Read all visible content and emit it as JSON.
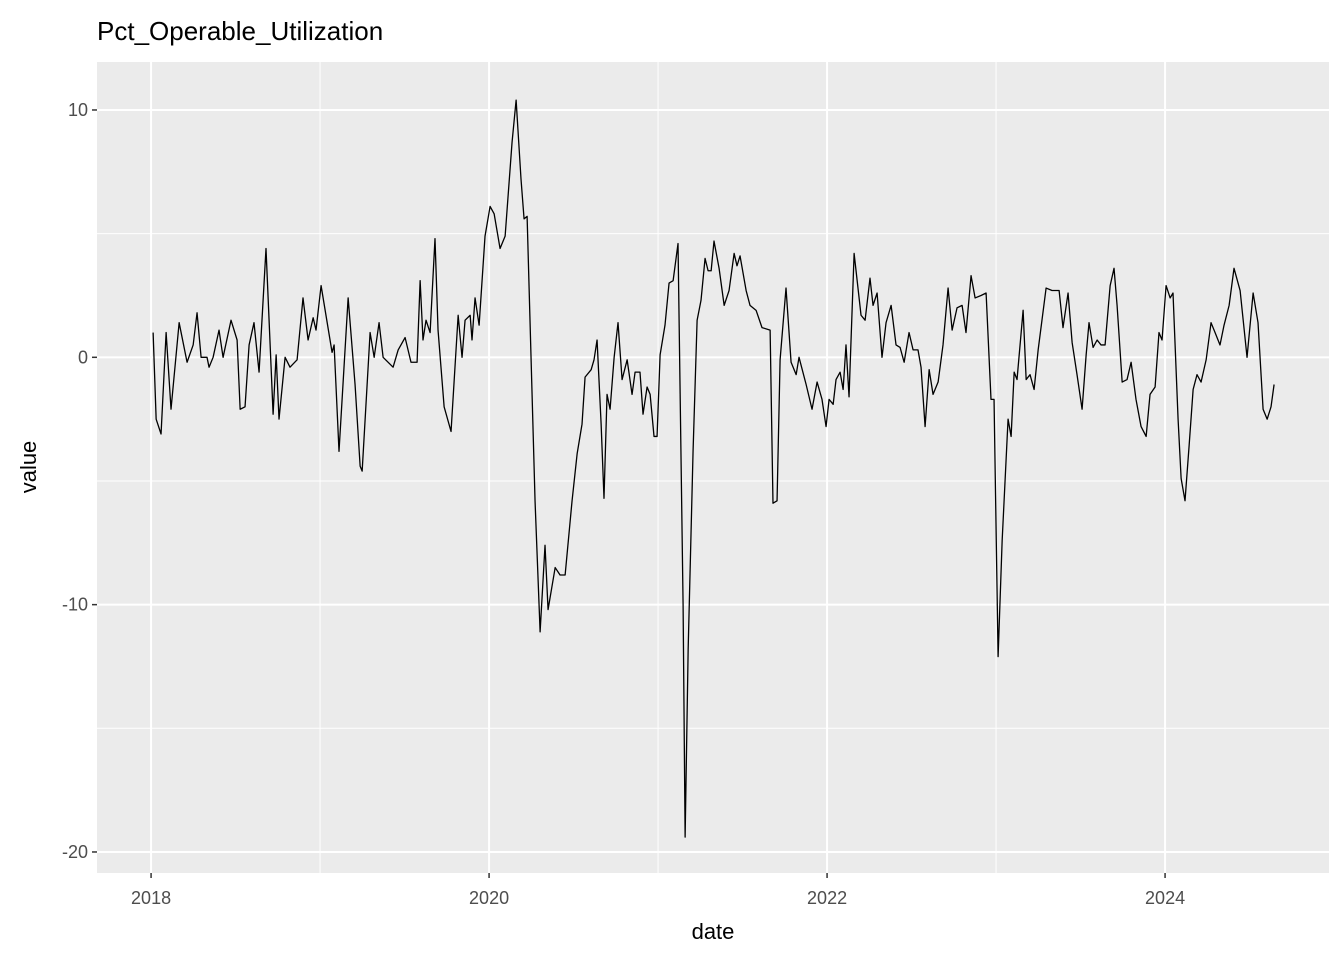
{
  "chart_data": {
    "type": "line",
    "title": "Pct_Operable_Utilization",
    "x_label": "date",
    "y_label": "value",
    "color": "#000000",
    "grid": true,
    "xlim": [
      2017.68,
      2024.97
    ],
    "ylim": [
      -20.85,
      11.94
    ],
    "xticks": [
      2018,
      2020,
      2022,
      2024
    ],
    "yticks": [
      -20,
      -10,
      0,
      10
    ],
    "xminor": [
      2019,
      2021,
      2023
    ],
    "yminor": [
      -15,
      -5,
      5
    ],
    "x": [
      2018.012,
      2018.03,
      2018.059,
      2018.089,
      2018.118,
      2018.166,
      2018.213,
      2018.249,
      2018.272,
      2018.296,
      2018.331,
      2018.343,
      2018.367,
      2018.402,
      2018.426,
      2018.473,
      2018.509,
      2018.527,
      2018.556,
      2018.58,
      2018.609,
      2018.639,
      2018.68,
      2018.722,
      2018.74,
      2018.757,
      2018.793,
      2018.822,
      2018.864,
      2018.899,
      2018.929,
      2018.959,
      2018.976,
      2019.006,
      2019.071,
      2019.083,
      2019.112,
      2019.166,
      2019.207,
      2019.237,
      2019.249,
      2019.296,
      2019.32,
      2019.349,
      2019.373,
      2019.432,
      2019.462,
      2019.503,
      2019.538,
      2019.574,
      2019.592,
      2019.609,
      2019.627,
      2019.651,
      2019.68,
      2019.698,
      2019.734,
      2019.775,
      2019.817,
      2019.84,
      2019.858,
      2019.888,
      2019.899,
      2019.917,
      2019.941,
      2019.976,
      2020.006,
      2020.03,
      2020.065,
      2020.095,
      2020.136,
      2020.16,
      2020.189,
      2020.207,
      2020.225,
      2020.272,
      2020.302,
      2020.331,
      2020.349,
      2020.391,
      2020.42,
      2020.45,
      2020.491,
      2020.521,
      2020.55,
      2020.568,
      2020.604,
      2020.621,
      2020.639,
      2020.663,
      2020.68,
      2020.698,
      2020.716,
      2020.74,
      2020.763,
      2020.787,
      2020.817,
      2020.846,
      2020.864,
      2020.893,
      2020.911,
      2020.935,
      2020.953,
      2020.976,
      2020.994,
      2021.012,
      2021.041,
      2021.065,
      2021.089,
      2021.118,
      2021.148,
      2021.16,
      2021.178,
      2021.207,
      2021.231,
      2021.254,
      2021.278,
      2021.296,
      2021.314,
      2021.331,
      2021.361,
      2021.391,
      2021.42,
      2021.45,
      2021.467,
      2021.485,
      2021.521,
      2021.544,
      2021.58,
      2021.615,
      2021.663,
      2021.68,
      2021.704,
      2021.722,
      2021.757,
      2021.787,
      2021.817,
      2021.834,
      2021.876,
      2021.911,
      2021.941,
      2021.97,
      2021.994,
      2022.012,
      2022.036,
      2022.053,
      2022.077,
      2022.095,
      2022.112,
      2022.13,
      2022.16,
      2022.201,
      2022.225,
      2022.254,
      2022.272,
      2022.296,
      2022.325,
      2022.349,
      2022.379,
      2022.408,
      2022.432,
      2022.456,
      2022.485,
      2022.509,
      2022.538,
      2022.556,
      2022.58,
      2022.604,
      2022.627,
      2022.657,
      2022.686,
      2022.716,
      2022.74,
      2022.769,
      2022.799,
      2022.822,
      2022.852,
      2022.876,
      2022.911,
      2022.941,
      2022.97,
      2022.988,
      2023.012,
      2023.036,
      2023.071,
      2023.089,
      2023.107,
      2023.124,
      2023.16,
      2023.178,
      2023.201,
      2023.225,
      2023.249,
      2023.296,
      2023.331,
      2023.373,
      2023.396,
      2023.426,
      2023.45,
      2023.479,
      2023.509,
      2023.533,
      2023.55,
      2023.574,
      2023.598,
      2023.621,
      2023.645,
      2023.675,
      2023.698,
      2023.716,
      2023.746,
      2023.775,
      2023.799,
      2023.828,
      2023.858,
      2023.888,
      2023.911,
      2023.941,
      2023.964,
      2023.982,
      2024.006,
      2024.03,
      2024.047,
      2024.077,
      2024.095,
      2024.118,
      2024.142,
      2024.166,
      2024.189,
      2024.213,
      2024.243,
      2024.272,
      2024.296,
      2024.325,
      2024.349,
      2024.379,
      2024.408,
      2024.444,
      2024.485,
      2024.521,
      2024.55,
      2024.58,
      2024.604,
      2024.627,
      2024.645
    ],
    "values": [
      1.0,
      -2.5,
      -3.1,
      1.0,
      -2.1,
      1.4,
      -0.2,
      0.5,
      1.8,
      0,
      0,
      -0.4,
      0,
      1.1,
      0,
      1.5,
      0.7,
      -2.1,
      -2.0,
      0.5,
      1.4,
      -0.6,
      4.4,
      -2.3,
      0.1,
      -2.5,
      0,
      -0.4,
      -0.1,
      2.4,
      0.7,
      1.6,
      1.1,
      2.9,
      0.2,
      0.5,
      -3.8,
      2.4,
      -1.1,
      -4.4,
      -4.6,
      1.0,
      0,
      1.4,
      0,
      -0.4,
      0.3,
      0.8,
      -0.2,
      -0.2,
      3.1,
      0.7,
      1.5,
      1.0,
      4.8,
      1.1,
      -2.0,
      -3.0,
      1.7,
      0,
      1.5,
      1.7,
      0.7,
      2.4,
      1.3,
      4.9,
      6.1,
      5.8,
      4.4,
      4.9,
      8.7,
      10.4,
      7.2,
      5.6,
      5.7,
      -5.8,
      -11.1,
      -7.6,
      -10.2,
      -8.5,
      -8.8,
      -8.8,
      -5.8,
      -3.9,
      -2.7,
      -0.8,
      -0.5,
      -0.1,
      0.7,
      -2.7,
      -5.7,
      -1.5,
      -2.1,
      0,
      1.4,
      -0.9,
      -0.1,
      -1.5,
      -0.6,
      -0.6,
      -2.3,
      -1.2,
      -1.5,
      -3.2,
      -3.2,
      0.1,
      1.3,
      3.0,
      3.1,
      4.6,
      -10.0,
      -19.4,
      -11.8,
      -3.8,
      1.5,
      2.3,
      4.0,
      3.5,
      3.5,
      4.7,
      3.6,
      2.1,
      2.7,
      4.2,
      3.7,
      4.1,
      2.7,
      2.1,
      1.9,
      1.2,
      1.1,
      -5.9,
      -5.8,
      -0.1,
      2.8,
      -0.2,
      -0.7,
      0,
      -1.1,
      -2.1,
      -1.0,
      -1.7,
      -2.8,
      -1.7,
      -1.9,
      -0.9,
      -0.6,
      -1.3,
      0.5,
      -1.6,
      4.2,
      1.7,
      1.5,
      3.2,
      2.1,
      2.6,
      0,
      1.4,
      2.1,
      0.5,
      0.4,
      -0.2,
      1.0,
      0.3,
      0.3,
      -0.4,
      -2.8,
      -0.5,
      -1.5,
      -1.0,
      0.5,
      2.8,
      1.1,
      2.0,
      2.1,
      1.0,
      3.3,
      2.4,
      2.5,
      2.6,
      -1.7,
      -1.7,
      -12.1,
      -7.4,
      -2.5,
      -3.2,
      -0.6,
      -0.9,
      1.9,
      -0.9,
      -0.7,
      -1.3,
      0.3,
      2.8,
      2.7,
      2.7,
      1.2,
      2.6,
      0.6,
      -0.7,
      -2.1,
      0.1,
      1.4,
      0.4,
      0.7,
      0.5,
      0.5,
      2.9,
      3.6,
      2.1,
      -1.0,
      -0.9,
      -0.2,
      -1.7,
      -2.8,
      -3.2,
      -1.5,
      -1.2,
      1.0,
      0.7,
      2.9,
      2.4,
      2.6,
      -2.5,
      -4.9,
      -5.8,
      -3.6,
      -1.3,
      -0.7,
      -1.0,
      -0.1,
      1.4,
      1.0,
      0.5,
      1.3,
      2.1,
      3.6,
      2.7,
      0,
      2.6,
      1.4,
      -2.1,
      -2.5,
      -2.0,
      -1.1
    ]
  }
}
